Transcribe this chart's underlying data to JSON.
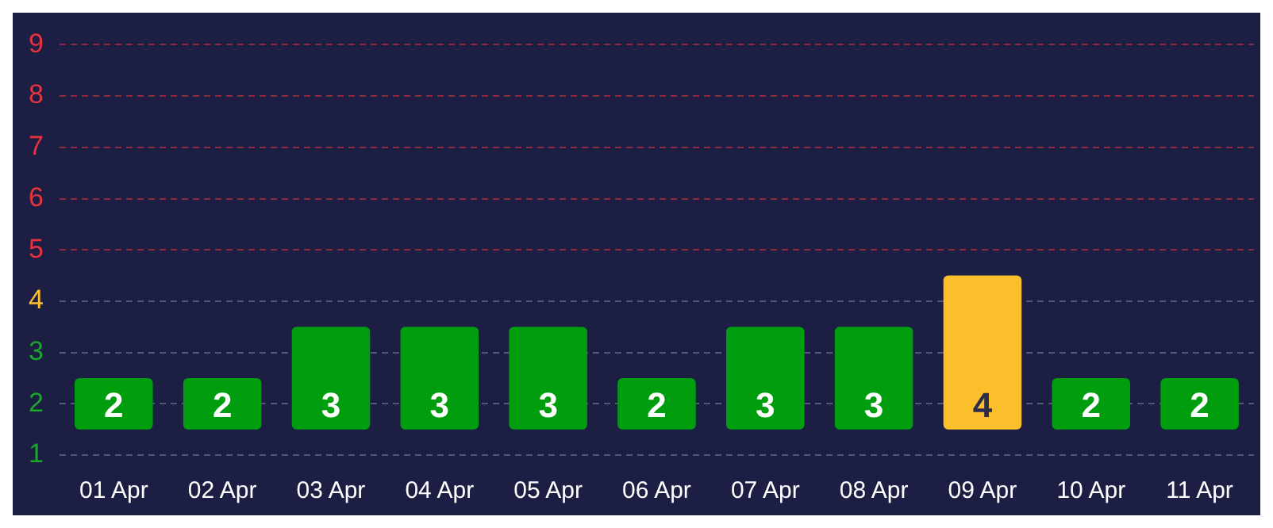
{
  "chart_data": {
    "type": "bar",
    "categories": [
      "01 Apr",
      "02 Apr",
      "03 Apr",
      "04 Apr",
      "05 Apr",
      "06 Apr",
      "07 Apr",
      "08 Apr",
      "09 Apr",
      "10 Apr",
      "11 Apr"
    ],
    "base": [
      1.5,
      1.5,
      1.5,
      1.5,
      1.5,
      1.5,
      1.5,
      1.5,
      1.5,
      1.5,
      1.5
    ],
    "values": [
      1,
      1,
      2,
      2,
      2,
      1,
      2,
      2,
      3,
      1,
      1
    ],
    "value_labels": [
      "2",
      "2",
      "3",
      "3",
      "3",
      "2",
      "3",
      "3",
      "4",
      "2",
      "2"
    ],
    "colors": [
      "#009e0f",
      "#009e0f",
      "#009e0f",
      "#009e0f",
      "#009e0f",
      "#009e0f",
      "#009e0f",
      "#009e0f",
      "#fbbf2c",
      "#009e0f",
      "#009e0f"
    ],
    "ylim": [
      1,
      9
    ],
    "yticks": [
      1,
      2,
      3,
      4,
      5,
      6,
      7,
      8,
      9
    ],
    "grid": "y"
  }
}
